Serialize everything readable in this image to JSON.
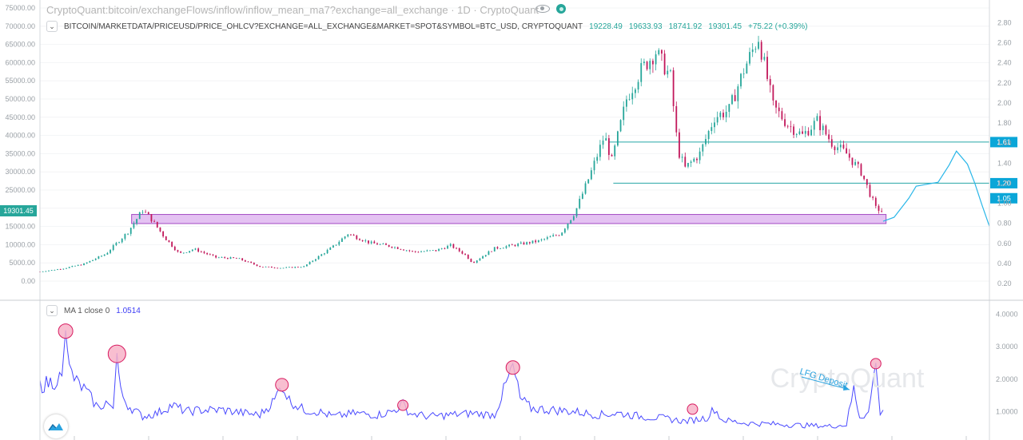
{
  "header": {
    "title": "CryptoQuant:bitcoin/exchangeFlows/inflow/inflow_mean_ma7?exchange=all_exchange · 1D · CryptoQuant"
  },
  "price_legend": {
    "symbol": "BITCOIN/MARKETDATA/PRICEUSD/PRICE_OHLCV?EXCHANGE=ALL_EXCHANGE&MARKET=SPOT&SYMBOL=BTC_USD, CRYPTOQUANT",
    "open": "19228.49",
    "high": "19633.93",
    "low": "18741.92",
    "close": "19301.45",
    "change": "+75.22 (+0.39%)"
  },
  "ma_legend": {
    "label": "MA 1 close 0",
    "value": "1.0514"
  },
  "watermark": "CryptoQuant",
  "annotation": "LFG Deposit",
  "colors": {
    "up": "#26a69a",
    "down": "#c2185b",
    "line": "#4a4aff",
    "projection": "#29b6e8",
    "support": "#d9a8ec",
    "level": "#26a6a6"
  },
  "chart_data": [
    {
      "type": "candlestick",
      "left_axis_ticks": [
        "0.00",
        "5000.00",
        "10000.00",
        "15000.00",
        "20000.00",
        "25000.00",
        "30000.00",
        "35000.00",
        "40000.00",
        "45000.00",
        "50000.00",
        "55000.00",
        "60000.00",
        "65000.00",
        "70000.00",
        "75000.00"
      ],
      "right_axis_ticks": [
        "0.20",
        "0.40",
        "0.60",
        "0.80",
        "1.00",
        "1.20",
        "1.40",
        "1.60",
        "1.80",
        "2.00",
        "2.20",
        "2.40",
        "2.60",
        "2.80"
      ],
      "ylim_price": [
        0,
        75000
      ],
      "last_price_label": "19301.45",
      "price_path": [
        [
          0,
          2600
        ],
        [
          3,
          3400
        ],
        [
          6,
          4700
        ],
        [
          9,
          7500
        ],
        [
          12,
          13500
        ],
        [
          14,
          19500
        ],
        [
          15,
          17500
        ],
        [
          17,
          12000
        ],
        [
          19,
          7500
        ],
        [
          21,
          8800
        ],
        [
          24,
          6500
        ],
        [
          27,
          6200
        ],
        [
          30,
          4000
        ],
        [
          33,
          3600
        ],
        [
          36,
          4000
        ],
        [
          40,
          9500
        ],
        [
          42,
          13000
        ],
        [
          45,
          10500
        ],
        [
          48,
          9500
        ],
        [
          51,
          8000
        ],
        [
          54,
          8400
        ],
        [
          56,
          9800
        ],
        [
          58,
          7200
        ],
        [
          59,
          5000
        ],
        [
          62,
          9000
        ],
        [
          65,
          10000
        ],
        [
          68,
          11000
        ],
        [
          71,
          13000
        ],
        [
          73,
          19000
        ],
        [
          75,
          29000
        ],
        [
          77,
          40000
        ],
        [
          78,
          33000
        ],
        [
          80,
          50000
        ],
        [
          82,
          58000
        ],
        [
          84,
          63000
        ],
        [
          86,
          56000
        ],
        [
          87,
          36000
        ],
        [
          88,
          31000
        ],
        [
          90,
          35000
        ],
        [
          92,
          45000
        ],
        [
          94,
          47000
        ],
        [
          96,
          58000
        ],
        [
          98,
          67000
        ],
        [
          100,
          48000
        ],
        [
          102,
          43000
        ],
        [
          104,
          40000
        ],
        [
          106,
          44000
        ],
        [
          108,
          38000
        ],
        [
          110,
          35000
        ],
        [
          112,
          30000
        ],
        [
          113,
          25000
        ],
        [
          114,
          20000
        ],
        [
          115,
          19200
        ]
      ],
      "projection_ratio": [
        [
          115,
          0.82
        ],
        [
          116.5,
          0.86
        ],
        [
          118.5,
          1.05
        ],
        [
          119.5,
          1.17
        ],
        [
          121,
          1.19
        ],
        [
          122.5,
          1.21
        ],
        [
          124,
          1.38
        ],
        [
          125,
          1.52
        ],
        [
          126.5,
          1.39
        ],
        [
          127.5,
          1.2
        ],
        [
          128.5,
          0.98
        ],
        [
          129.5,
          0.77
        ]
      ],
      "horizontal_levels": [
        "1.61",
        "1.20",
        "1.05"
      ],
      "support_zone_price": [
        15800,
        18300
      ]
    },
    {
      "type": "line",
      "axis_ticks": [
        "1.0000",
        "2.0000",
        "3.0000",
        "4.0000"
      ],
      "ylim": [
        0.6,
        4.4
      ],
      "series": [
        {
          "name": "MA 1 close 0",
          "values": [
            [
              0,
              1.8
            ],
            [
              2,
              1.95
            ],
            [
              3,
              2.1
            ],
            [
              3.5,
              3.5
            ],
            [
              4,
              2.3
            ],
            [
              5,
              1.9
            ],
            [
              6,
              1.7
            ],
            [
              7,
              1.4
            ],
            [
              8,
              1.1
            ],
            [
              9,
              1.3
            ],
            [
              10,
              1.1
            ],
            [
              10.5,
              2.8
            ],
            [
              11,
              1.6
            ],
            [
              12,
              1.2
            ],
            [
              14,
              0.85
            ],
            [
              16,
              0.95
            ],
            [
              18,
              1.2
            ],
            [
              20,
              1.0
            ],
            [
              22,
              1.05
            ],
            [
              25,
              1.05
            ],
            [
              28,
              0.95
            ],
            [
              30,
              0.9
            ],
            [
              32,
              1.35
            ],
            [
              33,
              1.85
            ],
            [
              34,
              1.35
            ],
            [
              36,
              1.05
            ],
            [
              38,
              1.0
            ],
            [
              40,
              0.85
            ],
            [
              43,
              0.95
            ],
            [
              46,
              0.9
            ],
            [
              48,
              1.0
            ],
            [
              49.5,
              1.22
            ],
            [
              50.5,
              0.95
            ],
            [
              53,
              0.85
            ],
            [
              56,
              0.9
            ],
            [
              59,
              0.95
            ],
            [
              62,
              0.9
            ],
            [
              64.5,
              2.38
            ],
            [
              65.5,
              1.4
            ],
            [
              67,
              1.1
            ],
            [
              70,
              1.05
            ],
            [
              73,
              1.0
            ],
            [
              76,
              0.9
            ],
            [
              79,
              0.95
            ],
            [
              82,
              0.85
            ],
            [
              85,
              0.8
            ],
            [
              88,
              0.7
            ],
            [
              91,
              0.82
            ],
            [
              92,
              1.1
            ],
            [
              93,
              0.75
            ],
            [
              96,
              0.65
            ],
            [
              100,
              0.62
            ],
            [
              104,
              0.58
            ],
            [
              108,
              0.55
            ],
            [
              110,
              0.6
            ],
            [
              111,
              1.7
            ],
            [
              111.8,
              0.85
            ],
            [
              113,
              0.95
            ],
            [
              114,
              2.5
            ],
            [
              114.6,
              0.9
            ],
            [
              115,
              1.05
            ]
          ]
        }
      ],
      "highlighted_peaks": [
        3.5,
        2.8,
        1.85,
        1.22,
        2.38,
        1.1,
        2.5
      ]
    }
  ]
}
